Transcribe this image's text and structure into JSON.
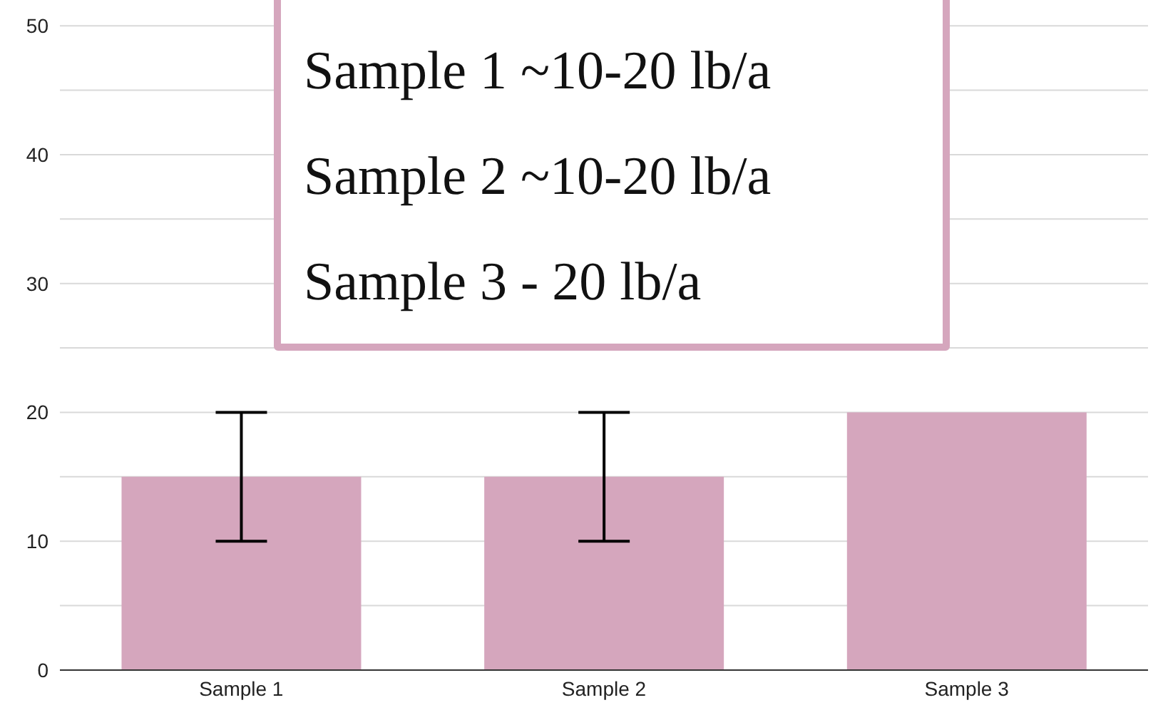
{
  "chart_data": {
    "type": "bar",
    "categories": [
      "Sample 1",
      "Sample 2",
      "Sample 3"
    ],
    "values": [
      15,
      15,
      20
    ],
    "errors": [
      [
        10,
        20
      ],
      [
        10,
        20
      ],
      null
    ],
    "color": "#d5a6bd",
    "ylim": [
      0,
      52
    ],
    "yticks": [
      0,
      {
        "value": 5,
        "label": null
      },
      10,
      {
        "value": 15,
        "label": null
      },
      20,
      {
        "value": 25,
        "label": null
      },
      30,
      {
        "value": 35,
        "label": null
      },
      40,
      {
        "value": 45,
        "label": null
      },
      50
    ],
    "grid": "y",
    "annotations": [
      "Sample 1 ~10-20 lb/a",
      "Sample 2 ~10-20 lb/a",
      "Sample 3 - 20 lb/a"
    ]
  }
}
